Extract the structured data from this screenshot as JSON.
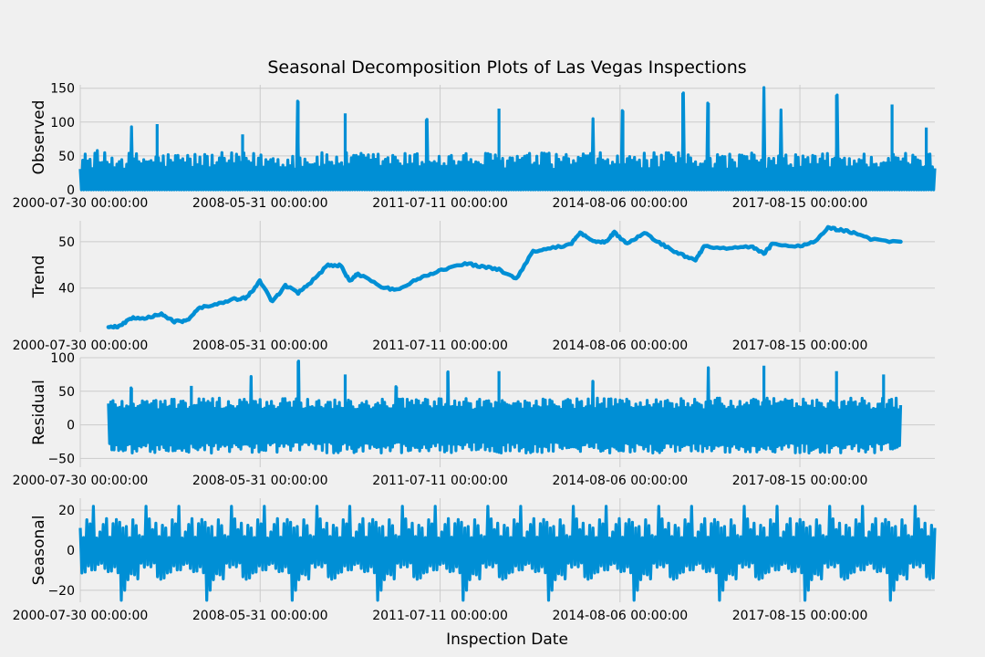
{
  "chart_data": {
    "type": "line",
    "title": "Seasonal Decomposition Plots of Las Vegas Inspections",
    "xlabel": "Inspection Date",
    "x_tick_labels": [
      "2000-07-30 00:00:00",
      "2008-05-31 00:00:00",
      "2011-07-11 00:00:00",
      "2014-08-06 00:00:00",
      "2017-08-15 00:00:00"
    ],
    "line_color": "#008fd5",
    "background": "#f0f0f0",
    "grid": true,
    "panels": [
      {
        "name": "observed",
        "ylabel": "Observed",
        "ylim": [
          0,
          155
        ],
        "yticks": [
          0,
          50,
          100,
          150
        ],
        "y_tick_labels": [
          "0",
          "50",
          "100",
          "150"
        ],
        "typical_range": [
          0,
          55
        ],
        "peaks": [
          {
            "x": 0.02,
            "y": 58
          },
          {
            "x": 0.06,
            "y": 93
          },
          {
            "x": 0.09,
            "y": 97
          },
          {
            "x": 0.19,
            "y": 82
          },
          {
            "x": 0.255,
            "y": 131
          },
          {
            "x": 0.31,
            "y": 113
          },
          {
            "x": 0.405,
            "y": 104
          },
          {
            "x": 0.49,
            "y": 120
          },
          {
            "x": 0.6,
            "y": 105
          },
          {
            "x": 0.635,
            "y": 117
          },
          {
            "x": 0.705,
            "y": 143
          },
          {
            "x": 0.735,
            "y": 128
          },
          {
            "x": 0.8,
            "y": 151
          },
          {
            "x": 0.82,
            "y": 118
          },
          {
            "x": 0.885,
            "y": 140
          },
          {
            "x": 0.95,
            "y": 126
          },
          {
            "x": 0.99,
            "y": 92
          }
        ]
      },
      {
        "name": "trend",
        "ylabel": "Trend",
        "ylim": [
          30.5,
          54.5
        ],
        "yticks": [
          40,
          50
        ],
        "y_tick_labels": [
          "40",
          "50"
        ],
        "points": [
          [
            0.033,
            31.5
          ],
          [
            0.045,
            31.7
          ],
          [
            0.06,
            33.5
          ],
          [
            0.075,
            33.6
          ],
          [
            0.095,
            34.3
          ],
          [
            0.11,
            32.8
          ],
          [
            0.125,
            33.0
          ],
          [
            0.14,
            35.8
          ],
          [
            0.16,
            36.5
          ],
          [
            0.18,
            37.6
          ],
          [
            0.195,
            37.9
          ],
          [
            0.21,
            41.5
          ],
          [
            0.225,
            37.0
          ],
          [
            0.24,
            40.5
          ],
          [
            0.255,
            39.0
          ],
          [
            0.27,
            41.3
          ],
          [
            0.29,
            45.0
          ],
          [
            0.305,
            44.8
          ],
          [
            0.315,
            41.5
          ],
          [
            0.325,
            43.1
          ],
          [
            0.35,
            40.5
          ],
          [
            0.37,
            39.5
          ],
          [
            0.385,
            41.0
          ],
          [
            0.405,
            42.8
          ],
          [
            0.425,
            44.0
          ],
          [
            0.45,
            45.3
          ],
          [
            0.47,
            44.7
          ],
          [
            0.49,
            44.0
          ],
          [
            0.51,
            42.0
          ],
          [
            0.53,
            48.0
          ],
          [
            0.55,
            48.5
          ],
          [
            0.575,
            49.5
          ],
          [
            0.585,
            52.0
          ],
          [
            0.6,
            50.0
          ],
          [
            0.615,
            50.0
          ],
          [
            0.625,
            52.0
          ],
          [
            0.64,
            49.5
          ],
          [
            0.66,
            52.0
          ],
          [
            0.68,
            49.5
          ],
          [
            0.7,
            47.5
          ],
          [
            0.72,
            46.0
          ],
          [
            0.73,
            49.0
          ],
          [
            0.76,
            48.5
          ],
          [
            0.785,
            49.0
          ],
          [
            0.8,
            47.5
          ],
          [
            0.81,
            49.5
          ],
          [
            0.84,
            49.0
          ],
          [
            0.86,
            50.0
          ],
          [
            0.875,
            53.0
          ],
          [
            0.89,
            52.5
          ],
          [
            0.905,
            52.0
          ],
          [
            0.925,
            50.5
          ],
          [
            0.96,
            50.0
          ]
        ]
      },
      {
        "name": "residual",
        "ylabel": "Residual",
        "ylim": [
          -63,
          100
        ],
        "yticks": [
          -50,
          0,
          50,
          100
        ],
        "y_tick_labels": [
          "−50",
          "0",
          "50",
          "100"
        ],
        "typical_range": [
          -42,
          40
        ],
        "x_start": 0.033,
        "x_end": 0.96,
        "peaks": [
          {
            "x": 0.06,
            "y": 55
          },
          {
            "x": 0.13,
            "y": 58
          },
          {
            "x": 0.2,
            "y": 72
          },
          {
            "x": 0.255,
            "y": 95
          },
          {
            "x": 0.31,
            "y": 75
          },
          {
            "x": 0.37,
            "y": 57
          },
          {
            "x": 0.43,
            "y": 79
          },
          {
            "x": 0.49,
            "y": 80
          },
          {
            "x": 0.6,
            "y": 65
          },
          {
            "x": 0.735,
            "y": 85
          },
          {
            "x": 0.8,
            "y": 88
          },
          {
            "x": 0.885,
            "y": 80
          },
          {
            "x": 0.94,
            "y": 75
          }
        ]
      },
      {
        "name": "seasonal",
        "ylabel": "Seasonal",
        "ylim": [
          -26,
          26
        ],
        "yticks": [
          -20,
          0,
          20
        ],
        "y_tick_labels": [
          "−20",
          "0",
          "20"
        ],
        "period_fraction": 0.1,
        "range": [
          -25,
          22
        ]
      }
    ]
  }
}
